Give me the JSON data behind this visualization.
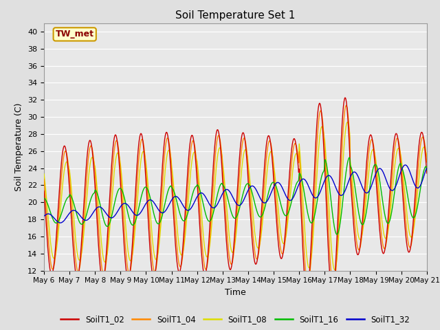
{
  "title": "Soil Temperature Set 1",
  "xlabel": "Time",
  "ylabel": "Soil Temperature (C)",
  "ylim": [
    12,
    41
  ],
  "yticks": [
    12,
    14,
    16,
    18,
    20,
    22,
    24,
    26,
    28,
    30,
    32,
    34,
    36,
    38,
    40
  ],
  "x_tick_labels": [
    "May 6",
    "May 7",
    "May 8",
    "May 9",
    "May 10",
    "May 11",
    "May 12",
    "May 13",
    "May 14",
    "May 15",
    "May 16",
    "May 17",
    "May 18",
    "May 19",
    "May 20",
    "May 21"
  ],
  "annotation_text": "TW_met",
  "annotation_color": "#8B0000",
  "annotation_bg": "#FFFFCC",
  "annotation_border": "#CC9900",
  "colors": {
    "SoilT1_02": "#CC0000",
    "SoilT1_04": "#FF8800",
    "SoilT1_08": "#DDDD00",
    "SoilT1_16": "#00BB00",
    "SoilT1_32": "#0000CC"
  },
  "bg_color": "#E0E0E0",
  "plot_bg": "#E8E8E8",
  "linewidth": 1.0
}
